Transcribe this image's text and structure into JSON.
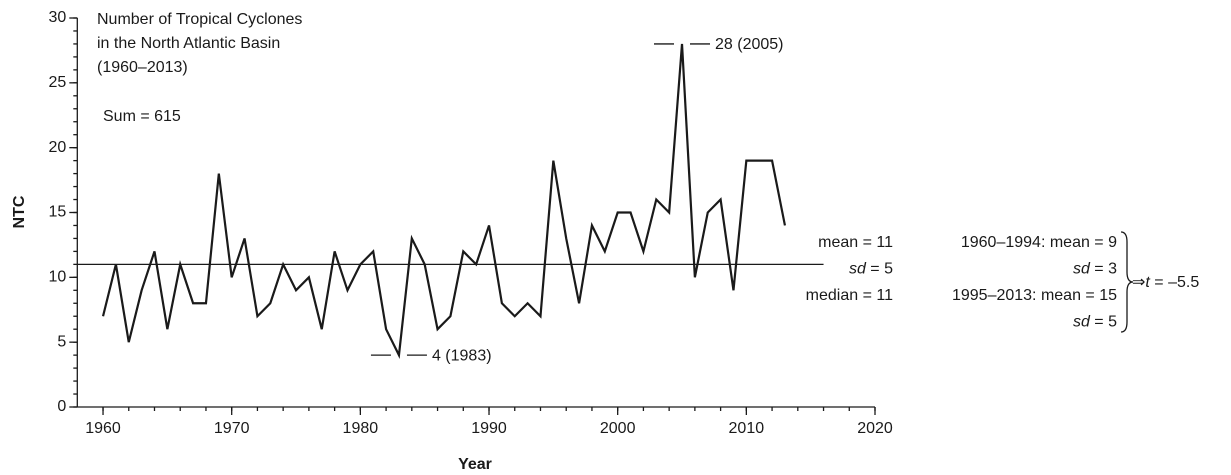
{
  "chart_data": {
    "type": "line",
    "title_lines": [
      "Number of Tropical Cyclones",
      "in the North Atlantic Basin",
      "(1960–2013)"
    ],
    "sum_label": "Sum = 615",
    "x_label": "Year",
    "y_label": "NTC",
    "x": [
      1960,
      1961,
      1962,
      1963,
      1964,
      1965,
      1966,
      1967,
      1968,
      1969,
      1970,
      1971,
      1972,
      1973,
      1974,
      1975,
      1976,
      1977,
      1978,
      1979,
      1980,
      1981,
      1982,
      1983,
      1984,
      1985,
      1986,
      1987,
      1988,
      1989,
      1990,
      1991,
      1992,
      1993,
      1994,
      1995,
      1996,
      1997,
      1998,
      1999,
      2000,
      2001,
      2002,
      2003,
      2004,
      2005,
      2006,
      2007,
      2008,
      2009,
      2010,
      2011,
      2012,
      2013
    ],
    "series": [
      {
        "name": "NTC",
        "color": "#1a1a1a",
        "values": [
          7,
          11,
          5,
          9,
          12,
          6,
          11,
          8,
          8,
          18,
          10,
          13,
          7,
          8,
          11,
          9,
          10,
          6,
          12,
          9,
          11,
          12,
          6,
          4,
          13,
          11,
          6,
          7,
          12,
          11,
          14,
          8,
          7,
          8,
          7,
          19,
          13,
          8,
          14,
          12,
          15,
          15,
          12,
          16,
          15,
          28,
          10,
          15,
          16,
          9,
          19,
          19,
          19,
          14
        ]
      }
    ],
    "xlim": [
      1958,
      2020
    ],
    "xticks": [
      1960,
      1970,
      1980,
      1990,
      2000,
      2010,
      2020
    ],
    "ylim": [
      0,
      30
    ],
    "yticks": [
      0,
      5,
      10,
      15,
      20,
      25,
      30
    ],
    "x_minor_step": 2,
    "y_minor_step": 1,
    "hline": {
      "y": 11,
      "x_range": [
        1958,
        2016
      ]
    },
    "annotations": [
      {
        "text": "28 (2005)",
        "x": 2005,
        "y": 28
      },
      {
        "text": "4 (1983)",
        "x": 1983,
        "y": 4
      }
    ],
    "stats": [
      {
        "pre": "",
        "italic": "",
        "text": "mean = 11"
      },
      {
        "pre": "",
        "italic": "sd",
        "text": " = 5"
      },
      {
        "pre": "",
        "italic": "",
        "text": "median = 11"
      }
    ],
    "period_stats": [
      {
        "italic": "",
        "text": "1960–1994: mean = 9"
      },
      {
        "italic": "sd",
        "text": " = 3"
      },
      {
        "italic": "",
        "text": "1995–2013: mean = 15"
      },
      {
        "italic": "sd",
        "text": " = 5"
      }
    ],
    "t_test": {
      "arrow": "⇒",
      "italic": "t",
      "text": " = –5.5"
    }
  }
}
